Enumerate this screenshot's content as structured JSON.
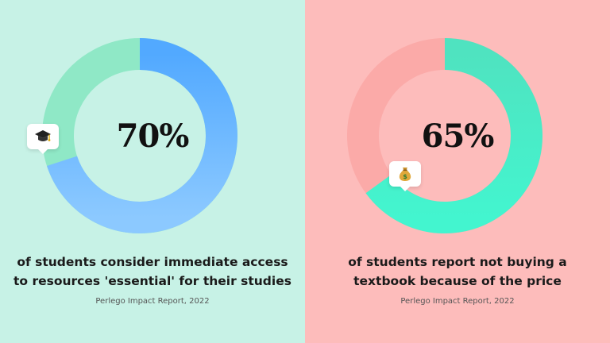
{
  "chart_data": [
    {
      "type": "pie",
      "value": 70,
      "label": "70%",
      "caption_lines": [
        "of students consider immediate access",
        "to resources 'essential' for their studies"
      ],
      "source": "Perlego Impact Report, 2022",
      "icon": "graduation-cap-icon",
      "colors": {
        "background": "#c7f2e6",
        "track": "#8fe8c6",
        "fill_start": "#52a9ff",
        "fill_end": "#8cc9ff"
      }
    },
    {
      "type": "pie",
      "value": 65,
      "label": "65%",
      "caption_lines": [
        "of students report not buying a",
        "textbook because of the price"
      ],
      "source": "Perlego Impact Report, 2022",
      "icon": "money-bag-icon",
      "colors": {
        "background": "#fdbcbb",
        "track": "#fbaaa8",
        "fill_start": "#4fe3c0",
        "fill_end": "#43f5cf"
      }
    }
  ]
}
